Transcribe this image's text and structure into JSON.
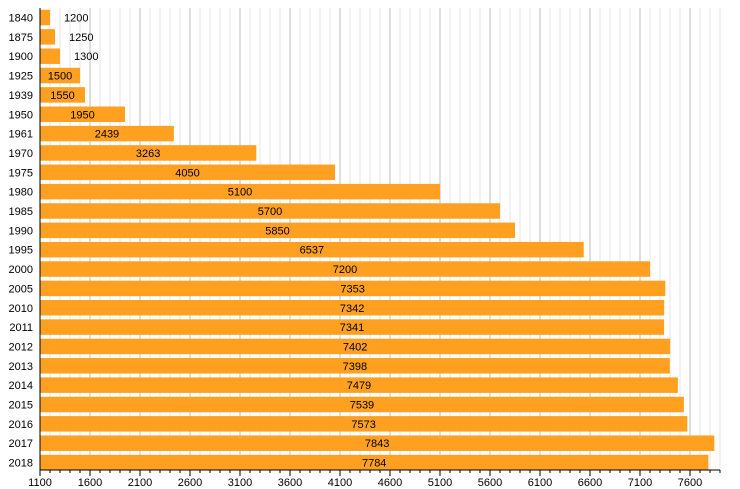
{
  "chart_data": {
    "type": "bar",
    "orientation": "horizontal",
    "title": "",
    "xlabel": "",
    "ylabel": "",
    "xlim": [
      1100,
      7900
    ],
    "x_ticks": [
      1100,
      1600,
      2100,
      2600,
      3100,
      3600,
      4100,
      4600,
      5100,
      5600,
      6100,
      6600,
      7100,
      7600
    ],
    "minor_grid_step": 100,
    "categories": [
      "1840",
      "1875",
      "1900",
      "1925",
      "1939",
      "1950",
      "1961",
      "1970",
      "1975",
      "1980",
      "1985",
      "1990",
      "1995",
      "2000",
      "2005",
      "2010",
      "2011",
      "2012",
      "2013",
      "2014",
      "2015",
      "2016",
      "2017",
      "2018"
    ],
    "values": [
      1200,
      1250,
      1300,
      1500,
      1550,
      1950,
      2439,
      3263,
      4050,
      5100,
      5700,
      5850,
      6537,
      7200,
      7353,
      7342,
      7341,
      7402,
      7398,
      7479,
      7539,
      7573,
      7843,
      7784
    ],
    "bar_color": "#ffa020",
    "grid": true,
    "legend": "none"
  }
}
